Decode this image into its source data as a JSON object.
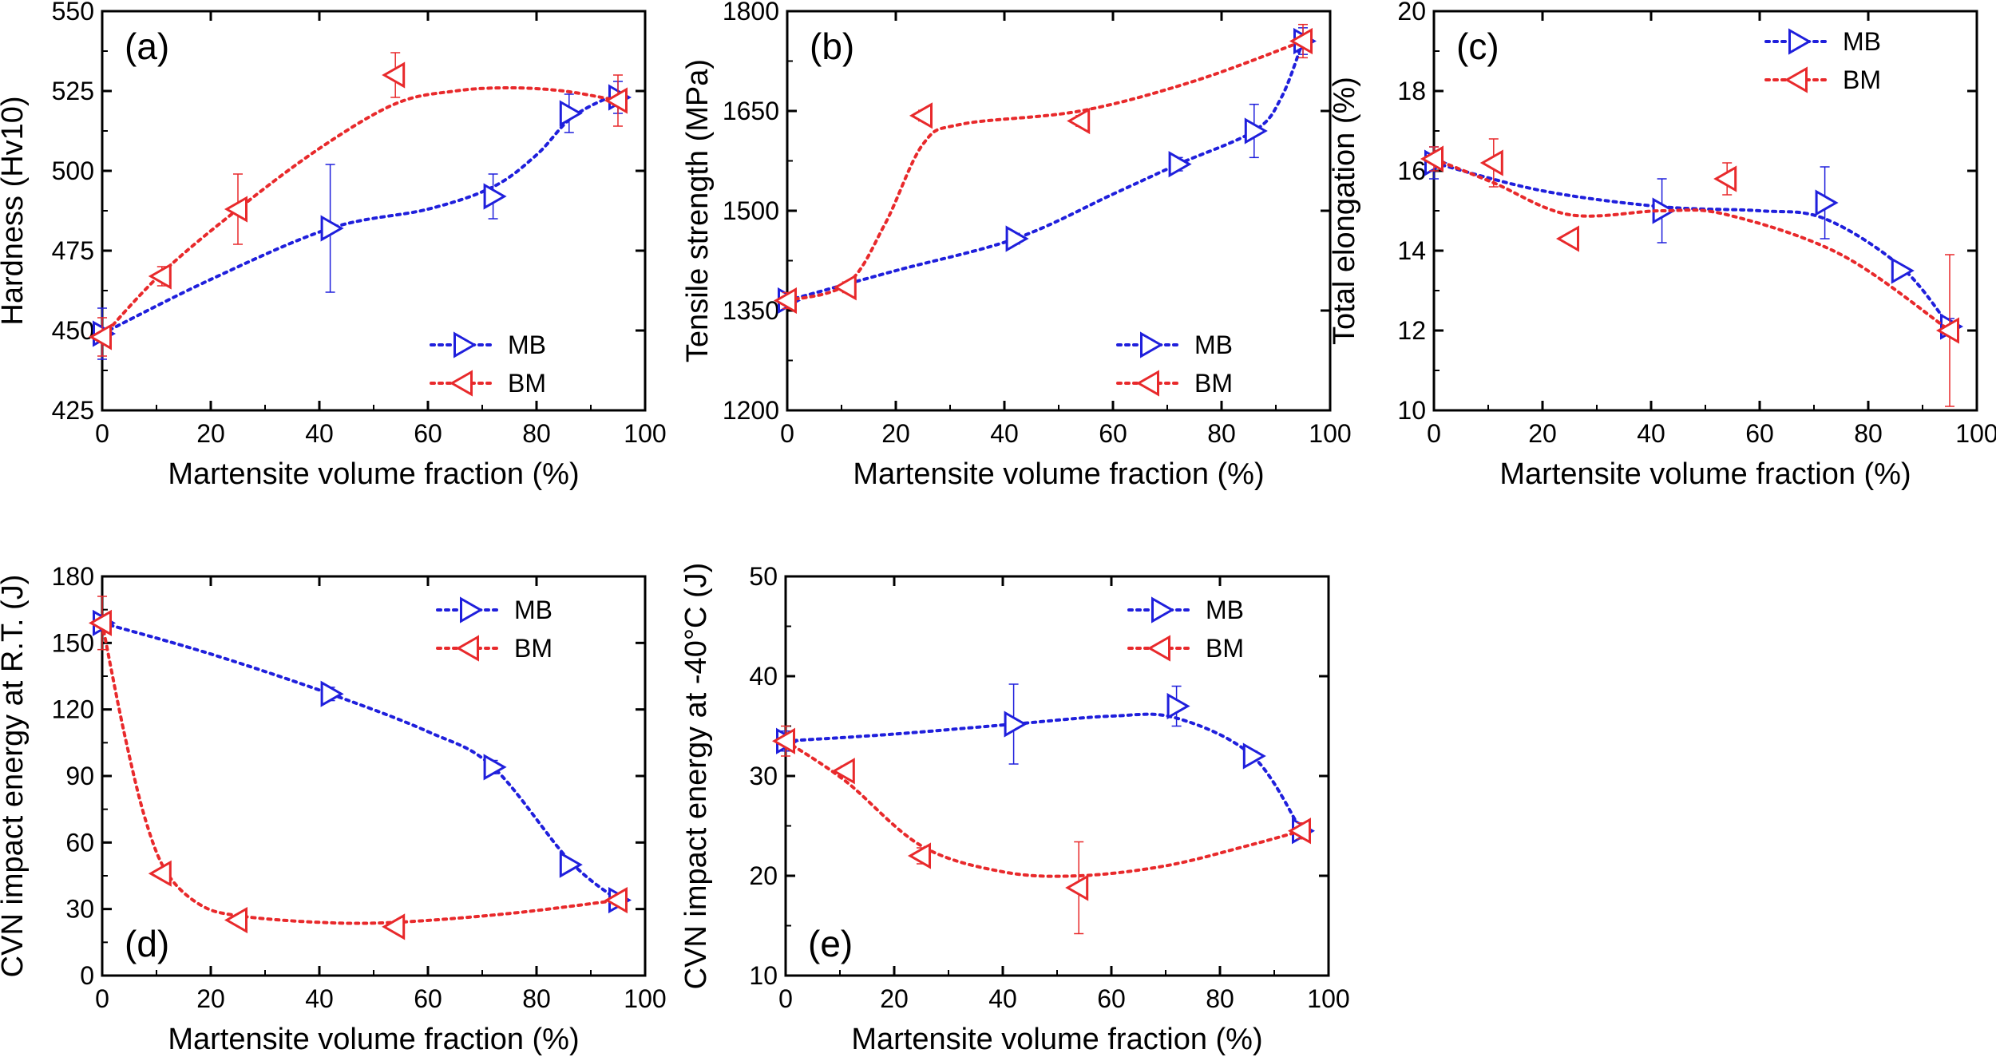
{
  "colors": {
    "MB": "#1f1fdc",
    "BM": "#e8292b",
    "axis": "#000000"
  },
  "chart_data": [
    {
      "panel": "(a)",
      "type": "scatter",
      "xlabel": "Martensite volume fraction (%)",
      "ylabel": "Hardness (Hv10)",
      "xlim": [
        0,
        100
      ],
      "ylim": [
        425,
        550
      ],
      "xticks": [
        0,
        20,
        40,
        60,
        80,
        100
      ],
      "yticks": [
        425,
        450,
        475,
        500,
        525,
        550
      ],
      "legend_position": "bottom-right",
      "series": [
        {
          "name": "MB",
          "marker": "triangle-right",
          "x": [
            0,
            42,
            72,
            86,
            95
          ],
          "y": [
            449,
            482,
            492,
            518,
            523
          ],
          "err": [
            8,
            20,
            7,
            6,
            5
          ],
          "fit": [
            [
              0,
              449
            ],
            [
              20,
              466
            ],
            [
              42,
              482
            ],
            [
              60,
              488
            ],
            [
              72,
              495
            ],
            [
              80,
              505
            ],
            [
              86,
              516
            ],
            [
              92,
              522
            ],
            [
              95,
              523
            ]
          ]
        },
        {
          "name": "BM",
          "marker": "triangle-left",
          "x": [
            0,
            11,
            25,
            54,
            95
          ],
          "y": [
            448,
            467,
            488,
            530,
            522
          ],
          "err": [
            6,
            3,
            11,
            7,
            8
          ],
          "fit": [
            [
              0,
              448
            ],
            [
              11,
              468
            ],
            [
              25,
              488
            ],
            [
              40,
              507
            ],
            [
              54,
              521
            ],
            [
              65,
              525
            ],
            [
              75,
              526
            ],
            [
              85,
              525
            ],
            [
              95,
              522
            ]
          ]
        }
      ]
    },
    {
      "panel": "(b)",
      "type": "scatter",
      "xlabel": "Martensite volume fraction (%)",
      "ylabel": "Tensile strength (MPa)",
      "xlim": [
        0,
        100
      ],
      "ylim": [
        1200,
        1800
      ],
      "xticks": [
        0,
        20,
        40,
        60,
        80,
        100
      ],
      "yticks": [
        1200,
        1350,
        1500,
        1650,
        1800
      ],
      "legend_position": "bottom-right",
      "series": [
        {
          "name": "MB",
          "marker": "triangle-right",
          "x": [
            0,
            42,
            72,
            86,
            95
          ],
          "y": [
            1365,
            1458,
            1570,
            1620,
            1755
          ],
          "err": [
            10,
            8,
            10,
            40,
            20
          ],
          "fit": [
            [
              0,
              1365
            ],
            [
              20,
              1410
            ],
            [
              42,
              1458
            ],
            [
              60,
              1525
            ],
            [
              72,
              1570
            ],
            [
              86,
              1620
            ],
            [
              91,
              1670
            ],
            [
              95,
              1755
            ]
          ]
        },
        {
          "name": "BM",
          "marker": "triangle-left",
          "x": [
            0,
            11,
            25,
            54,
            95
          ],
          "y": [
            1365,
            1385,
            1643,
            1635,
            1755
          ],
          "err": [
            12,
            8,
            8,
            8,
            25
          ],
          "fit": [
            [
              0,
              1365
            ],
            [
              11,
              1390
            ],
            [
              18,
              1480
            ],
            [
              25,
              1600
            ],
            [
              32,
              1630
            ],
            [
              54,
              1650
            ],
            [
              75,
              1695
            ],
            [
              95,
              1755
            ]
          ]
        }
      ]
    },
    {
      "panel": "(c)",
      "type": "scatter",
      "xlabel": "Martensite volume fraction (%)",
      "ylabel": "Total elongation (%)",
      "xlim": [
        0,
        100
      ],
      "ylim": [
        10,
        20
      ],
      "xticks": [
        0,
        20,
        40,
        60,
        80,
        100
      ],
      "yticks": [
        10,
        12,
        14,
        16,
        18,
        20
      ],
      "legend_position": "top-right",
      "series": [
        {
          "name": "MB",
          "marker": "triangle-right",
          "x": [
            0,
            42,
            72,
            86,
            95
          ],
          "y": [
            16.2,
            15.0,
            15.2,
            13.5,
            12.1
          ],
          "err": [
            0.4,
            0.8,
            0.9,
            0.1,
            0.2
          ],
          "fit": [
            [
              0,
              16.2
            ],
            [
              20,
              15.5
            ],
            [
              42,
              15.1
            ],
            [
              60,
              15.0
            ],
            [
              72,
              14.8
            ],
            [
              86,
              13.6
            ],
            [
              95,
              12.1
            ]
          ]
        },
        {
          "name": "BM",
          "marker": "triangle-left",
          "x": [
            0,
            11,
            25,
            54,
            95
          ],
          "y": [
            16.3,
            16.2,
            14.3,
            15.8,
            12.0
          ],
          "err": [
            0.3,
            0.6,
            0.1,
            0.4,
            1.9
          ],
          "fit": [
            [
              0,
              16.3
            ],
            [
              11,
              15.7
            ],
            [
              25,
              14.9
            ],
            [
              42,
              15.0
            ],
            [
              54,
              14.9
            ],
            [
              75,
              13.9
            ],
            [
              95,
              12.0
            ]
          ]
        }
      ]
    },
    {
      "panel": "(d)",
      "type": "scatter",
      "xlabel": "Martensite volume fraction (%)",
      "ylabel": "CVN impact energy at R.T. (J)",
      "xlim": [
        0,
        100
      ],
      "ylim": [
        0,
        180
      ],
      "xticks": [
        0,
        20,
        40,
        60,
        80,
        100
      ],
      "yticks": [
        0,
        30,
        60,
        90,
        120,
        150,
        180
      ],
      "legend_position": "top-right",
      "series": [
        {
          "name": "MB",
          "marker": "triangle-right",
          "x": [
            0,
            42,
            72,
            86,
            95
          ],
          "y": [
            159,
            127,
            94,
            50,
            34
          ],
          "err": [
            3,
            3,
            3,
            2,
            2
          ],
          "fit": [
            [
              0,
              159
            ],
            [
              20,
              145
            ],
            [
              42,
              127
            ],
            [
              60,
              110
            ],
            [
              72,
              94
            ],
            [
              86,
              52
            ],
            [
              95,
              34
            ]
          ]
        },
        {
          "name": "BM",
          "marker": "triangle-left",
          "x": [
            0,
            11,
            25,
            54,
            95
          ],
          "y": [
            159,
            46,
            25,
            22,
            34
          ],
          "err": [
            12,
            2,
            1,
            1,
            2
          ],
          "fit": [
            [
              0,
              159
            ],
            [
              4,
              110
            ],
            [
              8,
              70
            ],
            [
              12,
              46
            ],
            [
              18,
              32
            ],
            [
              25,
              27
            ],
            [
              40,
              24
            ],
            [
              54,
              24
            ],
            [
              75,
              28
            ],
            [
              95,
              34
            ]
          ]
        }
      ]
    },
    {
      "panel": "(e)",
      "type": "scatter",
      "xlabel": "Martensite volume fraction (%)",
      "ylabel": "CVN impact energy at -40°C (J)",
      "xlim": [
        0,
        100
      ],
      "ylim": [
        10,
        50
      ],
      "xticks": [
        0,
        20,
        40,
        60,
        80,
        100
      ],
      "yticks": [
        10,
        20,
        30,
        40,
        50
      ],
      "legend_position": "top-right",
      "series": [
        {
          "name": "MB",
          "marker": "triangle-right",
          "x": [
            0,
            42,
            72,
            86,
            95
          ],
          "y": [
            33.5,
            35.2,
            37.0,
            32.0,
            24.5
          ],
          "err": [
            1,
            4,
            2,
            0.5,
            0.5
          ],
          "fit": [
            [
              0,
              33.5
            ],
            [
              20,
              34.2
            ],
            [
              42,
              35.2
            ],
            [
              60,
              36.0
            ],
            [
              72,
              35.8
            ],
            [
              86,
              32.0
            ],
            [
              95,
              24.5
            ]
          ]
        },
        {
          "name": "BM",
          "marker": "triangle-left",
          "x": [
            0,
            11,
            25,
            54,
            95
          ],
          "y": [
            33.5,
            30.5,
            22.0,
            18.8,
            24.5
          ],
          "err": [
            1.5,
            0.5,
            0.8,
            4.6,
            0.8
          ],
          "fit": [
            [
              0,
              33.5
            ],
            [
              11,
              29.5
            ],
            [
              25,
              23.0
            ],
            [
              40,
              20.4
            ],
            [
              54,
              20.0
            ],
            [
              70,
              21.0
            ],
            [
              85,
              23.0
            ],
            [
              95,
              24.5
            ]
          ]
        }
      ]
    }
  ]
}
